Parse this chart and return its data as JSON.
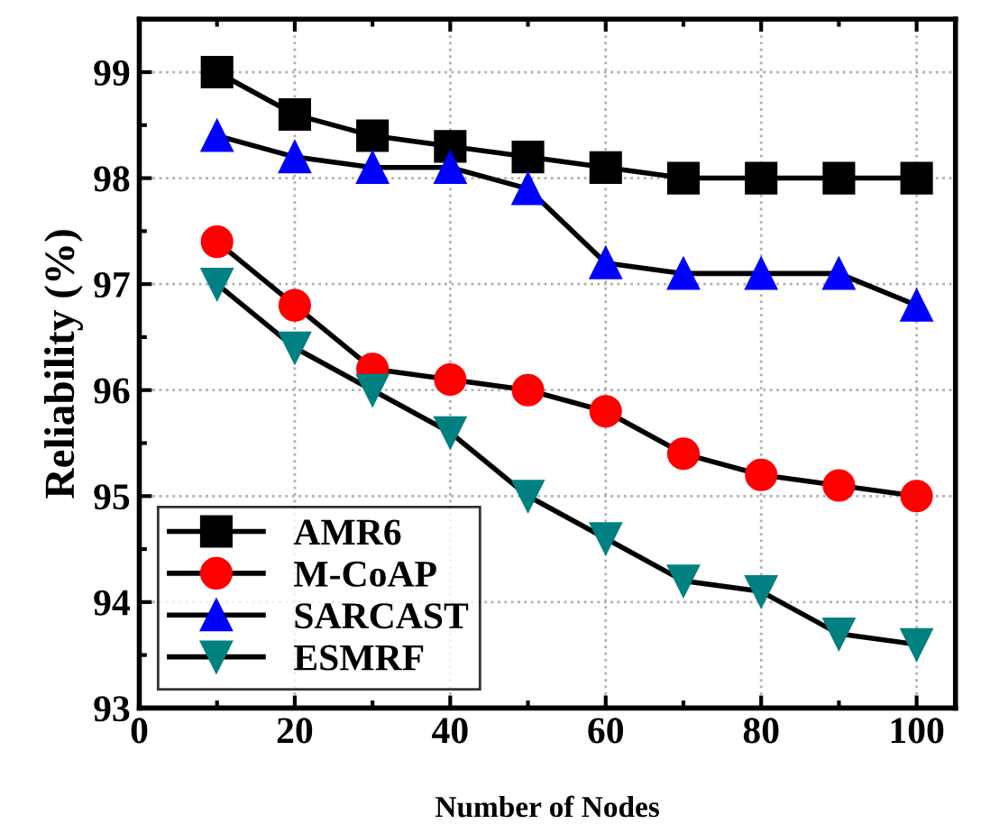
{
  "chart_data": {
    "type": "line",
    "xlabel": "Number of Nodes",
    "ylabel": "Reliability (%)",
    "x": [
      10,
      20,
      30,
      40,
      50,
      60,
      70,
      80,
      90,
      100
    ],
    "series": [
      {
        "name": "AMR6",
        "color": "#000000",
        "marker": "square",
        "values": [
          99.0,
          98.6,
          98.4,
          98.3,
          98.2,
          98.1,
          98.0,
          98.0,
          98.0,
          98.0
        ]
      },
      {
        "name": "M-CoAP",
        "color": "#ff0000",
        "marker": "circle",
        "values": [
          97.4,
          96.8,
          96.2,
          96.1,
          96.0,
          95.8,
          95.4,
          95.2,
          95.1,
          95.0
        ]
      },
      {
        "name": "SARCAST",
        "color": "#0000ff",
        "marker": "triangle",
        "values": [
          98.4,
          98.2,
          98.1,
          98.1,
          97.9,
          97.2,
          97.1,
          97.1,
          97.1,
          96.8
        ]
      },
      {
        "name": "ESMRF",
        "color": "#008080",
        "marker": "triangle_down",
        "values": [
          97.0,
          96.4,
          96.0,
          95.6,
          95.0,
          94.6,
          94.2,
          94.1,
          93.7,
          93.6
        ]
      }
    ],
    "xlim": [
      0,
      105
    ],
    "xticks": [
      0,
      20,
      40,
      60,
      80,
      100
    ],
    "ylim": [
      93,
      99.5
    ],
    "yticks": [
      93,
      94,
      95,
      96,
      97,
      98,
      99
    ],
    "grid": true,
    "legend": "bottom left",
    "line_style": "solid"
  }
}
